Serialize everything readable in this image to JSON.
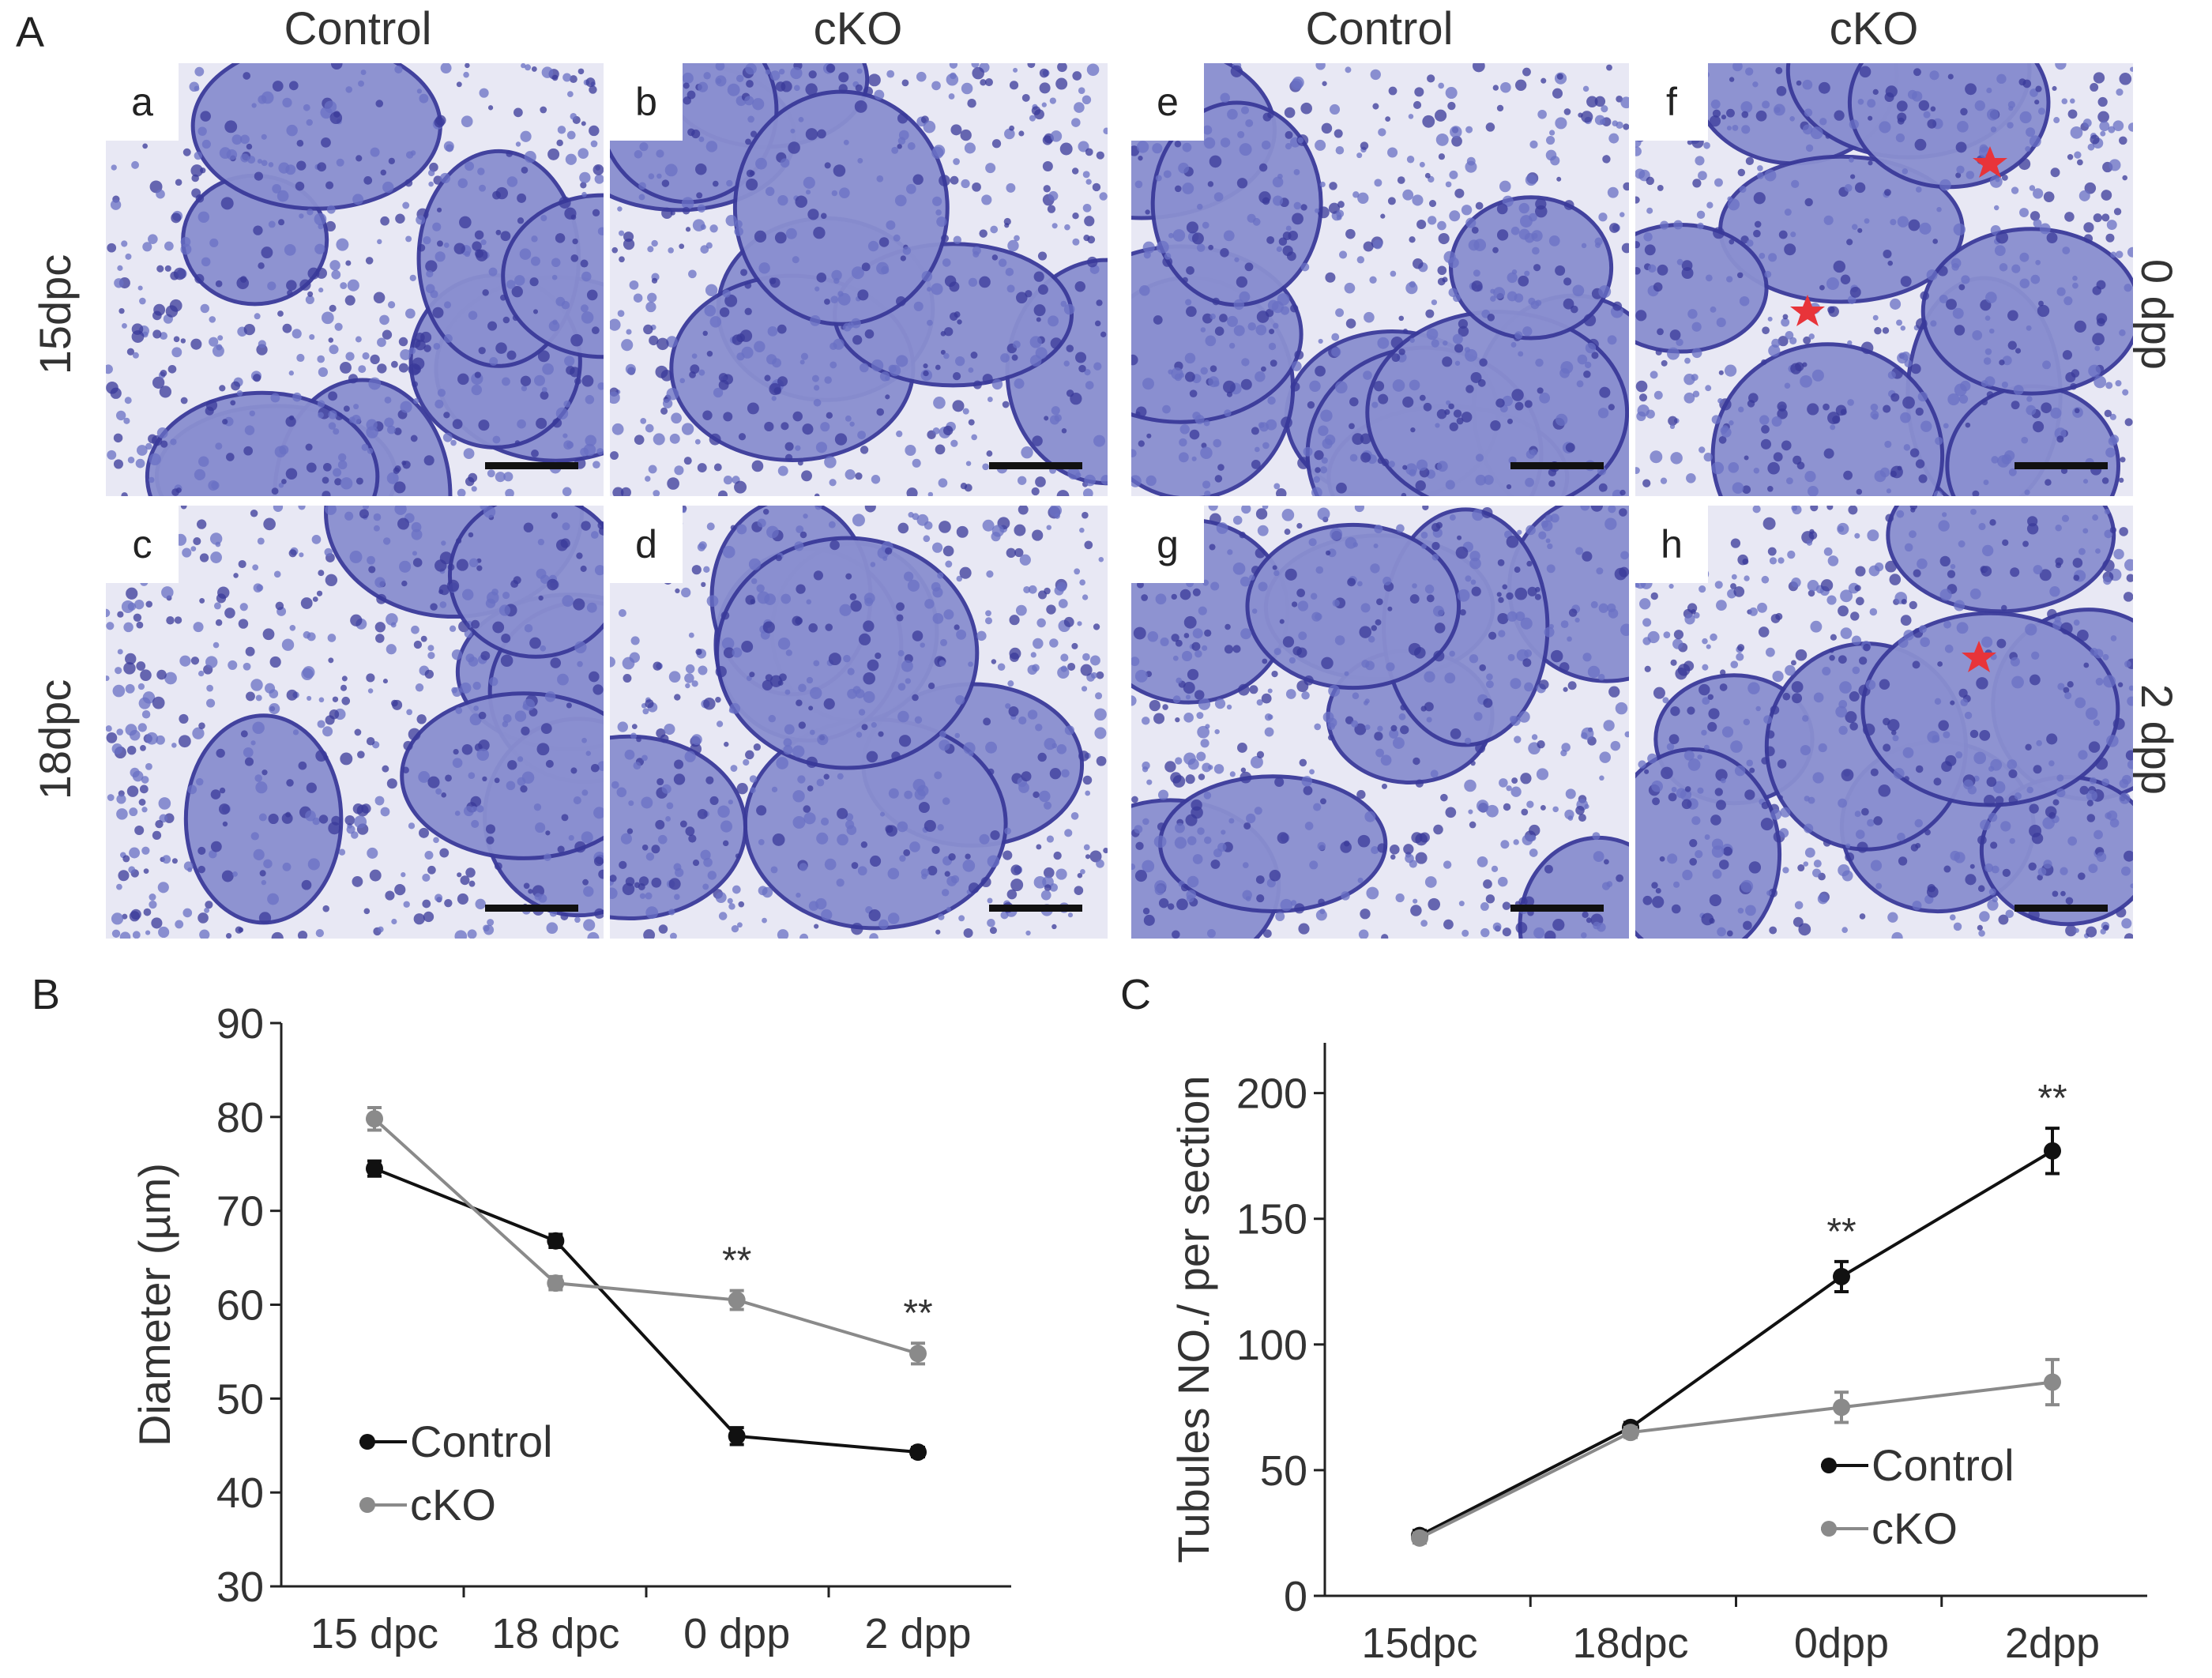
{
  "figure": {
    "panel_letters": {
      "A": "A",
      "B": "B",
      "C": "C"
    },
    "column_headers": [
      "Control",
      "cKO",
      "Control",
      "cKO"
    ],
    "row_headers_left": [
      "15dpc",
      "18dpc"
    ],
    "row_headers_right": [
      "0 dpp",
      "2 dpp"
    ],
    "subpanels": [
      "a",
      "b",
      "c",
      "d",
      "e",
      "f",
      "g",
      "h"
    ],
    "stain_colors": {
      "background": "#8a8fd0",
      "cell": "#6a70c4",
      "nucleus": "#3a3a9a",
      "lumen": "#e8e8f4",
      "star": "#e8343a"
    }
  },
  "chart_data": [
    {
      "type": "line",
      "panel": "B",
      "categories": [
        "15 dpc",
        "18 dpc",
        "0 dpp",
        "2 dpp"
      ],
      "series": [
        {
          "name": "Control",
          "color": "#111111",
          "values": [
            74.5,
            66.8,
            46,
            44.3
          ],
          "errors": [
            0.8,
            0.7,
            0.9,
            0.5
          ]
        },
        {
          "name": "cKO",
          "color": "#8a8a8a",
          "values": [
            79.8,
            62.3,
            60.5,
            54.8
          ],
          "errors": [
            1.2,
            0.7,
            1.0,
            1.1
          ]
        }
      ],
      "significance": [
        {
          "category": "0 dpp",
          "label": "**"
        },
        {
          "category": "2 dpp",
          "label": "**"
        }
      ],
      "title": "",
      "xlabel": "",
      "ylabel": "Diameter (µm)",
      "ylim": [
        30,
        90
      ],
      "yticks": [
        30,
        40,
        50,
        60,
        70,
        80,
        90
      ],
      "legend": "bottom-left",
      "grid": false
    },
    {
      "type": "line",
      "panel": "C",
      "categories": [
        "15dpc",
        "18dpc",
        "0dpp",
        "2dpp"
      ],
      "series": [
        {
          "name": "Control",
          "color": "#111111",
          "values": [
            24,
            67,
            127,
            177
          ],
          "errors": [
            2,
            2,
            6,
            9
          ]
        },
        {
          "name": "cKO",
          "color": "#8a8a8a",
          "values": [
            23,
            65,
            75,
            85
          ],
          "errors": [
            2,
            2,
            6,
            9
          ]
        }
      ],
      "significance": [
        {
          "category": "0dpp",
          "label": "**"
        },
        {
          "category": "2dpp",
          "label": "**"
        }
      ],
      "title": "",
      "xlabel": "",
      "ylabel": "Tubules NO./ per section",
      "ylim": [
        0,
        220
      ],
      "yticks": [
        0,
        50,
        100,
        150,
        200
      ],
      "legend": "bottom-right",
      "grid": false
    }
  ]
}
